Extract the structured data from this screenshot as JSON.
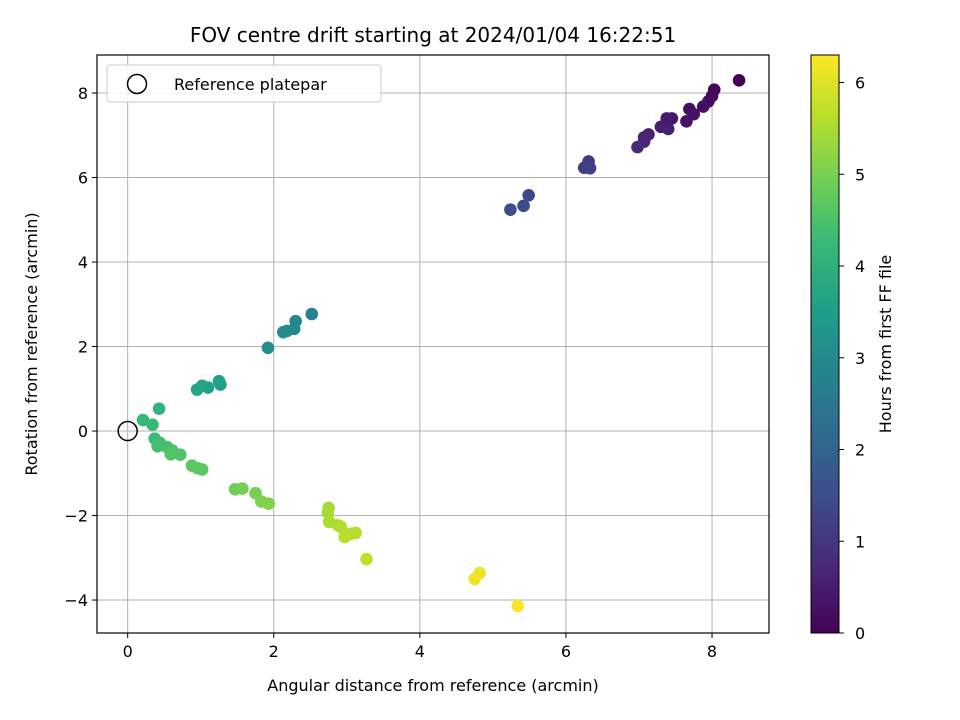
{
  "chart_data": {
    "type": "scatter",
    "title": "FOV centre drift starting at 2024/01/04 16:22:51",
    "xlabel": "Angular distance from reference (arcmin)",
    "ylabel": "Rotation from reference (arcmin)",
    "xlim": [
      -0.42,
      8.78
    ],
    "ylim": [
      -4.78,
      8.9
    ],
    "xticks": [
      0,
      2,
      4,
      6,
      8
    ],
    "yticks": [
      -4,
      -2,
      0,
      2,
      4,
      6,
      8
    ],
    "grid": true,
    "legend": {
      "placement": "top-left",
      "entries": [
        {
          "label": "Reference platepar",
          "marker": "open-circle"
        }
      ]
    },
    "reference_point": {
      "x": 0,
      "y": 0,
      "label": "Reference platepar"
    },
    "colorbar": {
      "label": "Hours from first FF file",
      "range": [
        0,
        6.3
      ],
      "ticks": [
        0,
        1,
        2,
        3,
        4,
        5,
        6
      ],
      "colormap": "viridis"
    },
    "colormap_stops": [
      "#440154",
      "#482878",
      "#3e4989",
      "#31688e",
      "#26828e",
      "#1f9e89",
      "#35b779",
      "#6ece58",
      "#b5de2b",
      "#fde725"
    ],
    "points": [
      {
        "x": 8.37,
        "y": 8.3,
        "c": 0.0
      },
      {
        "x": 8.03,
        "y": 8.08,
        "c": 0.1
      },
      {
        "x": 8.0,
        "y": 7.93,
        "c": 0.15
      },
      {
        "x": 7.95,
        "y": 7.8,
        "c": 0.2
      },
      {
        "x": 7.88,
        "y": 7.68,
        "c": 0.25
      },
      {
        "x": 7.69,
        "y": 7.62,
        "c": 0.25
      },
      {
        "x": 7.75,
        "y": 7.5,
        "c": 0.3
      },
      {
        "x": 7.65,
        "y": 7.33,
        "c": 0.3
      },
      {
        "x": 7.45,
        "y": 7.4,
        "c": 0.4
      },
      {
        "x": 7.38,
        "y": 7.4,
        "c": 0.45
      },
      {
        "x": 7.3,
        "y": 7.2,
        "c": 0.5
      },
      {
        "x": 7.4,
        "y": 7.15,
        "c": 0.55
      },
      {
        "x": 7.13,
        "y": 7.02,
        "c": 0.6
      },
      {
        "x": 7.07,
        "y": 6.95,
        "c": 0.65
      },
      {
        "x": 7.07,
        "y": 6.85,
        "c": 0.7
      },
      {
        "x": 6.98,
        "y": 6.72,
        "c": 0.75
      },
      {
        "x": 6.31,
        "y": 6.38,
        "c": 1.1
      },
      {
        "x": 6.25,
        "y": 6.23,
        "c": 1.15
      },
      {
        "x": 6.33,
        "y": 6.22,
        "c": 1.2
      },
      {
        "x": 5.49,
        "y": 5.58,
        "c": 1.4
      },
      {
        "x": 5.42,
        "y": 5.33,
        "c": 1.45
      },
      {
        "x": 5.24,
        "y": 5.24,
        "c": 1.5
      },
      {
        "x": 2.52,
        "y": 2.77,
        "c": 2.8
      },
      {
        "x": 2.3,
        "y": 2.6,
        "c": 2.9
      },
      {
        "x": 2.28,
        "y": 2.42,
        "c": 2.95
      },
      {
        "x": 2.18,
        "y": 2.37,
        "c": 3.0
      },
      {
        "x": 2.13,
        "y": 2.34,
        "c": 3.05
      },
      {
        "x": 1.92,
        "y": 1.97,
        "c": 3.1
      },
      {
        "x": 1.25,
        "y": 1.18,
        "c": 3.5
      },
      {
        "x": 1.27,
        "y": 1.1,
        "c": 3.55
      },
      {
        "x": 1.1,
        "y": 1.03,
        "c": 3.6
      },
      {
        "x": 1.02,
        "y": 1.07,
        "c": 3.65
      },
      {
        "x": 0.95,
        "y": 0.98,
        "c": 3.7
      },
      {
        "x": 0.43,
        "y": 0.53,
        "c": 4.1
      },
      {
        "x": 0.21,
        "y": 0.26,
        "c": 4.2
      },
      {
        "x": 0.34,
        "y": 0.15,
        "c": 4.25
      },
      {
        "x": 0.37,
        "y": -0.18,
        "c": 4.3
      },
      {
        "x": 0.44,
        "y": -0.28,
        "c": 4.35
      },
      {
        "x": 0.41,
        "y": -0.36,
        "c": 4.4
      },
      {
        "x": 0.54,
        "y": -0.38,
        "c": 4.45
      },
      {
        "x": 0.61,
        "y": -0.46,
        "c": 4.5
      },
      {
        "x": 0.59,
        "y": -0.55,
        "c": 4.55
      },
      {
        "x": 0.72,
        "y": -0.56,
        "c": 4.55
      },
      {
        "x": 0.88,
        "y": -0.82,
        "c": 4.65
      },
      {
        "x": 0.96,
        "y": -0.88,
        "c": 4.7
      },
      {
        "x": 1.02,
        "y": -0.91,
        "c": 4.7
      },
      {
        "x": 1.47,
        "y": -1.38,
        "c": 4.9
      },
      {
        "x": 1.57,
        "y": -1.36,
        "c": 4.95
      },
      {
        "x": 1.75,
        "y": -1.47,
        "c": 5.0
      },
      {
        "x": 1.83,
        "y": -1.67,
        "c": 5.05
      },
      {
        "x": 1.93,
        "y": -1.72,
        "c": 5.1
      },
      {
        "x": 2.75,
        "y": -1.82,
        "c": 5.4
      },
      {
        "x": 2.74,
        "y": -1.93,
        "c": 5.45
      },
      {
        "x": 2.76,
        "y": -2.15,
        "c": 5.5
      },
      {
        "x": 2.88,
        "y": -2.23,
        "c": 5.5
      },
      {
        "x": 2.92,
        "y": -2.27,
        "c": 5.55
      },
      {
        "x": 3.06,
        "y": -2.43,
        "c": 5.6
      },
      {
        "x": 3.12,
        "y": -2.41,
        "c": 5.6
      },
      {
        "x": 2.97,
        "y": -2.51,
        "c": 5.65
      },
      {
        "x": 3.27,
        "y": -3.03,
        "c": 5.7
      },
      {
        "x": 4.82,
        "y": -3.36,
        "c": 6.1
      },
      {
        "x": 4.75,
        "y": -3.5,
        "c": 6.15
      },
      {
        "x": 5.34,
        "y": -4.14,
        "c": 6.25
      }
    ]
  }
}
